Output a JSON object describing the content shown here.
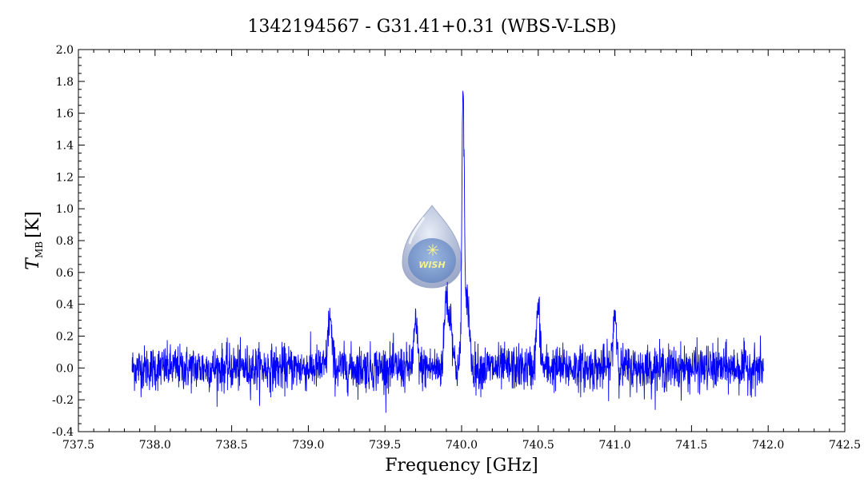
{
  "chart_data": {
    "type": "line",
    "title": "1342194567 - G31.41+0.31 (WBS-V-LSB)",
    "xlabel": "Frequency [GHz]",
    "ylabel": "T",
    "ylabel_subscript": "MB",
    "ylabel_unit": "[K]",
    "xlim": [
      737.5,
      742.5
    ],
    "ylim": [
      -0.4,
      2.0
    ],
    "xticks": [
      737.5,
      738.0,
      738.5,
      739.0,
      739.5,
      740.0,
      740.5,
      741.0,
      741.5,
      742.0,
      742.5
    ],
    "xtick_labels": [
      "737.5",
      "738.0",
      "738.5",
      "739.0",
      "739.5",
      "740.0",
      "740.5",
      "741.0",
      "741.5",
      "742.0",
      "742.5"
    ],
    "yticks": [
      -0.4,
      -0.2,
      0.0,
      0.2,
      0.4,
      0.6,
      0.8,
      1.0,
      1.2,
      1.4,
      1.6,
      1.8,
      2.0
    ],
    "ytick_labels": [
      "-0.4",
      "-0.2",
      "0.0",
      "0.2",
      "0.4",
      "0.6",
      "0.8",
      "1.0",
      "1.2",
      "1.4",
      "1.6",
      "1.8",
      "2.0"
    ],
    "grid": false,
    "series": [
      {
        "color": "#0000ff",
        "x_range": [
          737.85,
          741.97
        ],
        "baseline_noise_rms_K": 0.07,
        "features": [
          {
            "x": 740.01,
            "y": 1.75
          },
          {
            "x": 740.04,
            "y": 0.42
          },
          {
            "x": 739.9,
            "y": 0.45
          },
          {
            "x": 739.93,
            "y": 0.3
          },
          {
            "x": 740.5,
            "y": 0.37
          },
          {
            "x": 741.0,
            "y": 0.35
          },
          {
            "x": 739.14,
            "y": 0.32
          },
          {
            "x": 739.7,
            "y": 0.26
          }
        ]
      }
    ],
    "logo_text": "WISH"
  }
}
